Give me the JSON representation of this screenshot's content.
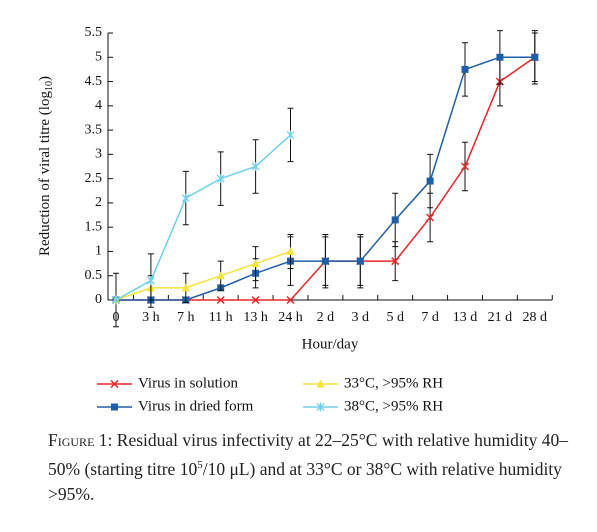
{
  "chart_data": {
    "type": "line",
    "y_label": "Reduction of viral titre (log",
    "y_label_sub": "10",
    "y_label_end": ")",
    "x_label": "Hour/day",
    "categories": [
      "0",
      "3 h",
      "7 h",
      "11 h",
      "13 h",
      "24 h",
      "2 d",
      "3 d",
      "5 d",
      "7 d",
      "13 d",
      "21 d",
      "28 d"
    ],
    "ylim": [
      0,
      5.5
    ],
    "yticks": [
      0,
      0.5,
      1,
      1.5,
      2,
      2.5,
      3,
      3.5,
      4,
      4.5,
      5,
      5.5
    ],
    "series": [
      {
        "name": "Virus in solution",
        "color": "#e8262a",
        "marker": "x",
        "values": [
          0,
          0,
          0,
          0,
          0,
          0,
          0.8,
          0.8,
          0.8,
          1.7,
          2.75,
          4.5,
          5
        ],
        "errors": [
          0.55,
          null,
          null,
          null,
          null,
          null,
          0.5,
          0.5,
          0.4,
          0.5,
          0.5,
          0.5,
          0.5
        ]
      },
      {
        "name": "Virus in dried form",
        "color": "#1f5fa8",
        "marker": "square",
        "values": [
          0,
          0,
          0,
          0.25,
          0.55,
          0.8,
          0.8,
          0.8,
          1.65,
          2.45,
          4.75,
          5,
          5
        ],
        "errors": [
          null,
          null,
          null,
          null,
          0.3,
          0.5,
          0.55,
          0.55,
          0.55,
          0.55,
          0.55,
          0.55,
          0.55
        ]
      },
      {
        "name": "33°C, >95% RH",
        "color": "#f2e43a",
        "marker": "triangle",
        "values": [
          0,
          0.25,
          0.25,
          0.5,
          0.75,
          1.0,
          null,
          null,
          null,
          null,
          null,
          null,
          null
        ],
        "errors": [
          null,
          0.25,
          0.3,
          0.3,
          0.35,
          0.35,
          null,
          null,
          null,
          null,
          null,
          null,
          null
        ]
      },
      {
        "name": "38°C, >95% RH",
        "color": "#6fd0e8",
        "marker": "star",
        "values": [
          0,
          0.4,
          2.1,
          2.5,
          2.75,
          3.4,
          null,
          null,
          null,
          null,
          null,
          null,
          null
        ],
        "errors": [
          null,
          0.55,
          0.55,
          0.55,
          0.55,
          0.55,
          null,
          null,
          null,
          null,
          null,
          null,
          null
        ]
      }
    ]
  },
  "caption": {
    "label": "Figure 1:",
    "text1": " Residual virus infectivity at 22–25°C with relative humidity 40–50% (starting titre 10",
    "sup": "5",
    "text2": "/10 μL) and at 33°C or 38°C with relative humidity >95%."
  }
}
